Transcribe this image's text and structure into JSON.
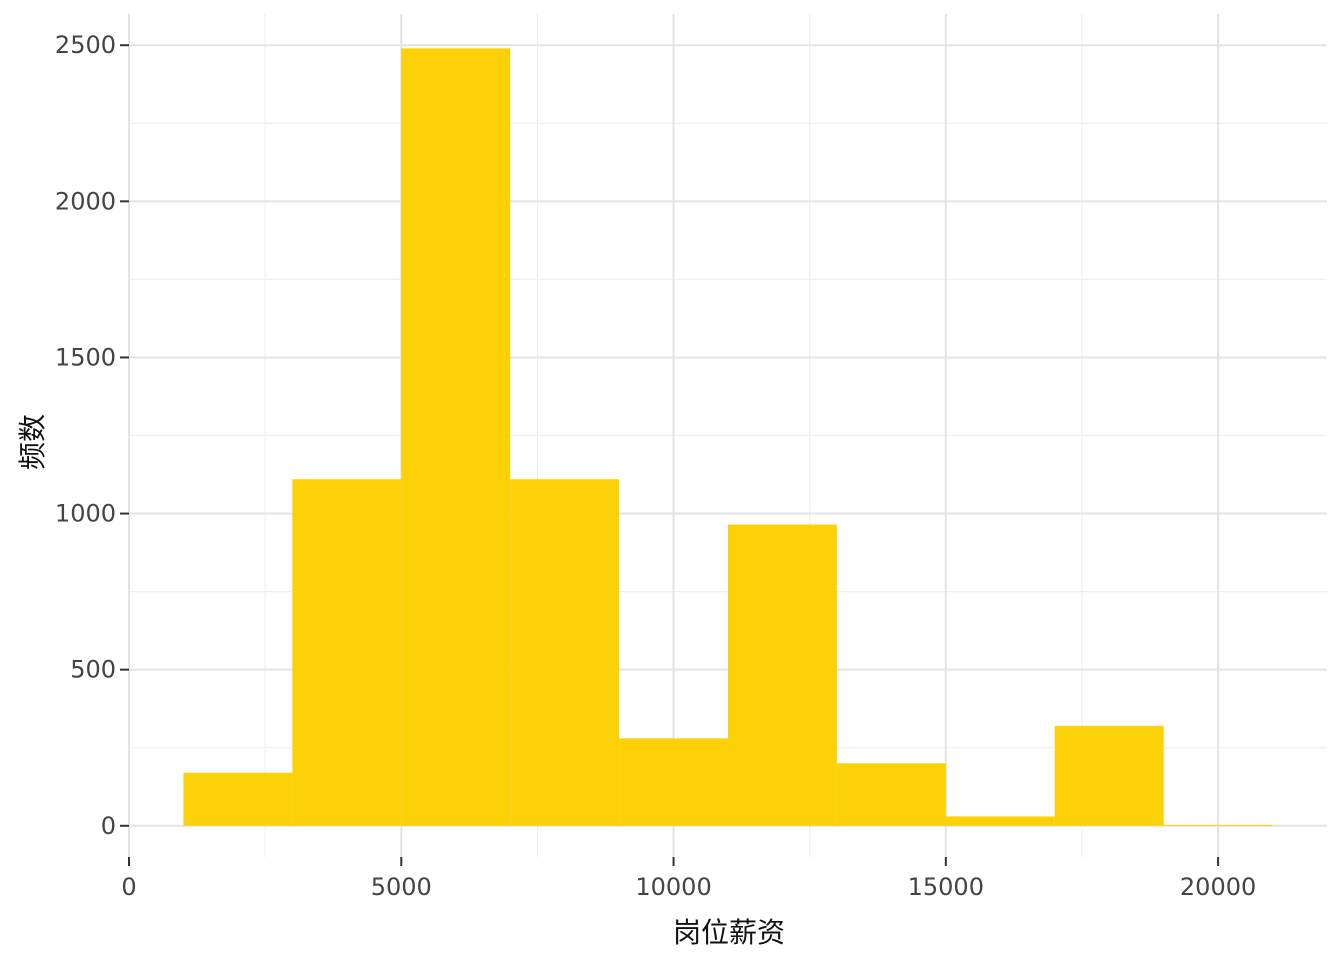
{
  "chart_data": {
    "type": "bar",
    "subtype": "histogram",
    "xlabel": "岗位薪资",
    "ylabel": "频数",
    "bar_color": "#FCD108",
    "xlim": [
      0,
      22000
    ],
    "ylim": [
      -100,
      2600
    ],
    "xticks": [
      0,
      5000,
      10000,
      15000,
      20000
    ],
    "yticks": [
      0,
      500,
      1000,
      1500,
      2000,
      2500
    ],
    "xtick_labels": [
      "0",
      "5000",
      "10000",
      "15000",
      "20000"
    ],
    "ytick_labels": [
      "0",
      "500",
      "1000",
      "1500",
      "2000",
      "2500"
    ],
    "grid": true,
    "bins": [
      {
        "start": 1000,
        "end": 3000,
        "count": 170
      },
      {
        "start": 3000,
        "end": 5000,
        "count": 1110
      },
      {
        "start": 5000,
        "end": 7000,
        "count": 2490
      },
      {
        "start": 7000,
        "end": 9000,
        "count": 1110
      },
      {
        "start": 9000,
        "end": 11000,
        "count": 280
      },
      {
        "start": 11000,
        "end": 13000,
        "count": 965
      },
      {
        "start": 13000,
        "end": 15000,
        "count": 200
      },
      {
        "start": 15000,
        "end": 17000,
        "count": 30
      },
      {
        "start": 17000,
        "end": 19000,
        "count": 320
      },
      {
        "start": 19000,
        "end": 21000,
        "count": 3
      }
    ]
  }
}
